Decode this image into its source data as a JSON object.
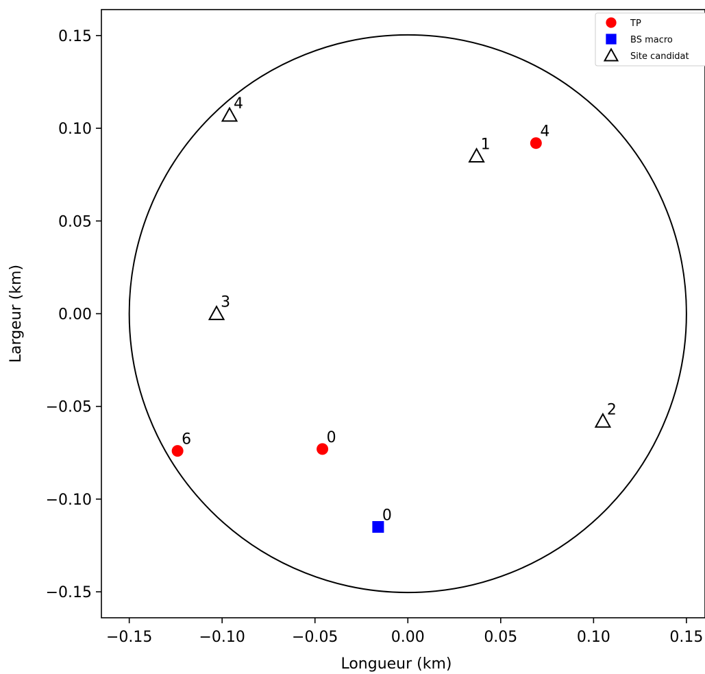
{
  "chart_data": {
    "type": "scatter",
    "xlabel": "Longueur (km)",
    "ylabel": "Largeur (km)",
    "xlim": [
      -0.165,
      0.16
    ],
    "ylim": [
      -0.164,
      0.164
    ],
    "xticks": [
      -0.15,
      -0.1,
      -0.05,
      0.0,
      0.05,
      0.1,
      0.15
    ],
    "xtick_labels": [
      "−0.15",
      "−0.10",
      "−0.05",
      "0.00",
      "0.05",
      "0.10",
      "0.15"
    ],
    "yticks": [
      0.15,
      0.1,
      0.05,
      0.0,
      -0.05,
      -0.1,
      -0.15
    ],
    "ytick_labels": [
      "0.15",
      "0.10",
      "0.05",
      "0.00",
      "−0.05",
      "−0.10",
      "−0.15"
    ],
    "grid": false,
    "legend_position": "top-right",
    "circle": {
      "cx": 0.0,
      "cy": 0.0,
      "r": 0.15
    },
    "series": [
      {
        "name": "TP",
        "marker": "circle",
        "color": "#ff0000",
        "points": [
          {
            "x": 0.069,
            "y": 0.092,
            "label": "4"
          },
          {
            "x": -0.046,
            "y": -0.073,
            "label": "0"
          },
          {
            "x": -0.124,
            "y": -0.074,
            "label": "6"
          }
        ]
      },
      {
        "name": "BS macro",
        "marker": "square",
        "color": "#0000ff",
        "points": [
          {
            "x": -0.016,
            "y": -0.115,
            "label": "0"
          }
        ]
      },
      {
        "name": "Site candidat",
        "marker": "triangle",
        "color": "#000000",
        "points": [
          {
            "x": 0.037,
            "y": 0.085,
            "label": "1"
          },
          {
            "x": 0.105,
            "y": -0.058,
            "label": "2"
          },
          {
            "x": -0.103,
            "y": 0.0,
            "label": "3"
          },
          {
            "x": -0.096,
            "y": 0.107,
            "label": "4"
          }
        ]
      }
    ]
  }
}
